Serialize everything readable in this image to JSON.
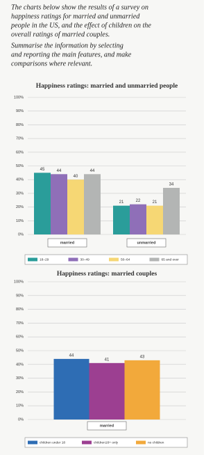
{
  "prompt": [
    "The charts below show the results of a survey on",
    "happiness ratings for married and unmarried",
    "people in the US, and the effect of children on the",
    "overall ratings of married couples.",
    "Summarise the information by selecting",
    "and reporting the main features, and make",
    "comparisons where relevant."
  ],
  "chart_data": [
    {
      "type": "bar",
      "title": "Happiness ratings: married and unmarried people",
      "categories": [
        "married",
        "unmarried"
      ],
      "series": [
        {
          "name": "18–29",
          "color": "#2a9d9a",
          "values": [
            45,
            21
          ]
        },
        {
          "name": "30–49",
          "color": "#8f6fb8",
          "values": [
            44,
            22
          ]
        },
        {
          "name": "50–64",
          "color": "#f6d774",
          "values": [
            40,
            21
          ]
        },
        {
          "name": "65 and over",
          "color": "#b3b5b4",
          "values": [
            44,
            34
          ]
        }
      ],
      "ylim": [
        0,
        100
      ],
      "yticks": [
        {
          "value": 0,
          "label": "0%"
        },
        {
          "value": 10,
          "label": "10%"
        },
        {
          "value": 20,
          "label": "20%"
        },
        {
          "value": 30,
          "label": "30%"
        },
        {
          "value": 40,
          "label": "40%"
        },
        {
          "value": 50,
          "label": "50%"
        },
        {
          "value": 60,
          "label": "60%"
        },
        {
          "value": 70,
          "label": "70%"
        },
        {
          "value": 80,
          "label": "80%"
        },
        {
          "value": 90,
          "label": "90%"
        },
        {
          "value": 100,
          "label": "100%"
        }
      ],
      "grid": true
    },
    {
      "type": "bar",
      "title": "Happiness ratings: married couples",
      "categories": [
        "married"
      ],
      "series": [
        {
          "name": "children under 18",
          "color": "#2e6db4",
          "values": [
            44
          ]
        },
        {
          "name": "children18+ only",
          "color": "#9c3f91",
          "values": [
            41
          ]
        },
        {
          "name": "no children",
          "color": "#f2a93b",
          "values": [
            43
          ]
        }
      ],
      "ylim": [
        0,
        100
      ],
      "yticks": [
        {
          "value": 0,
          "label": "0%"
        },
        {
          "value": 10,
          "label": "10%"
        },
        {
          "value": 20,
          "label": "20%"
        },
        {
          "value": 30,
          "label": "30%"
        },
        {
          "value": 40,
          "label": "40%"
        },
        {
          "value": 50,
          "label": "50%"
        },
        {
          "value": 60,
          "label": "60%"
        },
        {
          "value": 70,
          "label": "70%"
        },
        {
          "value": 80,
          "label": "80%"
        },
        {
          "value": 90,
          "label": "90%"
        },
        {
          "value": 100,
          "label": "100%"
        }
      ],
      "grid": true
    }
  ]
}
